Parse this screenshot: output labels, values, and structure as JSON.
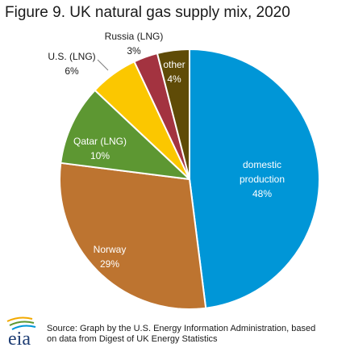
{
  "title": "Figure 9.  UK natural gas supply mix, 2020",
  "chart_data": {
    "type": "pie",
    "title": "Figure 9.  UK natural gas supply mix, 2020",
    "slices": [
      {
        "label": [
          "domestic",
          "production"
        ],
        "value": 48,
        "value_label": "48%",
        "color": "#0096d7",
        "label_placement": "inside"
      },
      {
        "label": [
          "Norway"
        ],
        "value": 29,
        "value_label": "29%",
        "color": "#bd7430",
        "label_placement": "inside"
      },
      {
        "label": [
          "Qatar (LNG)"
        ],
        "value": 10,
        "value_label": "10%",
        "color": "#5d9732",
        "label_placement": "inside"
      },
      {
        "label": [
          "U.S. (LNG)"
        ],
        "value": 6,
        "value_label": "6%",
        "color": "#fbc700",
        "label_placement": "outside"
      },
      {
        "label": [
          "Russia (LNG)"
        ],
        "value": 3,
        "value_label": "3%",
        "color": "#a33340",
        "label_placement": "outside"
      },
      {
        "label": [
          "other"
        ],
        "value": 4,
        "value_label": "4%",
        "color": "#5f4b07",
        "label_placement": "inside"
      }
    ],
    "start": "top",
    "direction": "clockwise"
  },
  "source": {
    "logo_text": "eia",
    "text_line1": "Source: Graph by the U.S. Energy Information Administration, based",
    "text_line2": "on data from Digest of UK Energy Statistics"
  }
}
